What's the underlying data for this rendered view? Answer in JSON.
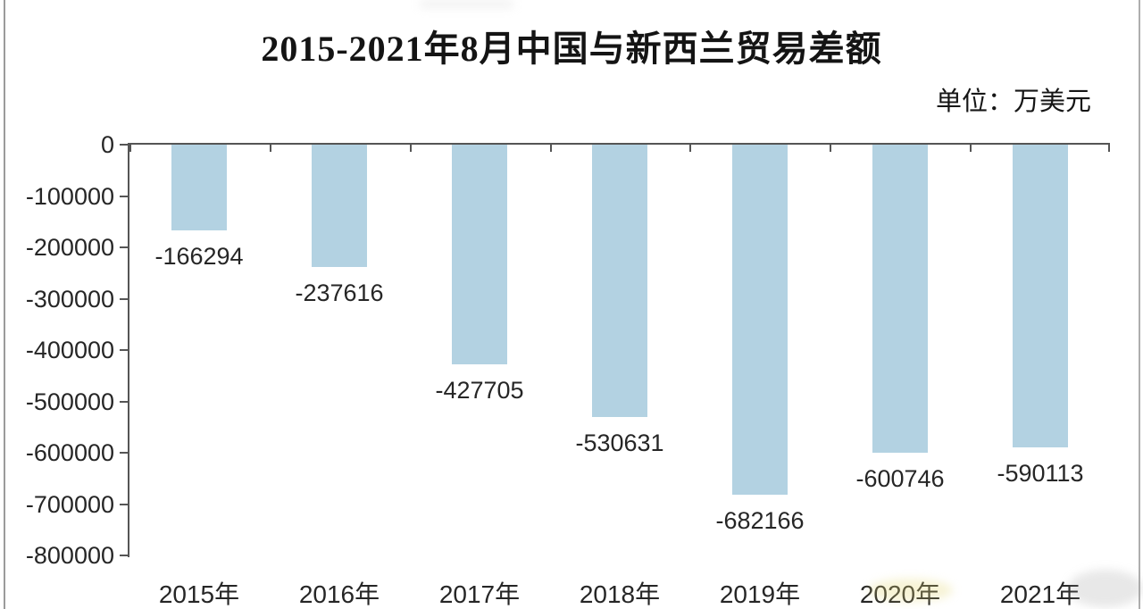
{
  "frame": {
    "left_border_color": "#9b9b9b",
    "right_border_color": "#aeaeae"
  },
  "header": {
    "title": "2015-2021年8月中国与新西兰贸易差额",
    "unit_label": "单位：万美元"
  },
  "chart_data": {
    "type": "bar",
    "title": "2015-2021年8月中国与新西兰贸易差额",
    "unit_label": "单位：万美元",
    "categories": [
      "2015年",
      "2016年",
      "2017年",
      "2018年",
      "2019年",
      "2020年",
      "2021年"
    ],
    "values": [
      -166294,
      -237616,
      -427705,
      -530631,
      -682166,
      -600746,
      -590113
    ],
    "data_labels": [
      "-166294",
      "-237616",
      "-427705",
      "-530631",
      "-682166",
      "-600746",
      "-590113"
    ],
    "xlabel": "",
    "ylabel": "",
    "ylim": [
      -800000,
      0
    ],
    "y_tick_step": 100000,
    "y_tick_labels": [
      "0",
      "-100000",
      "-200000",
      "-300000",
      "-400000",
      "-500000",
      "-600000",
      "-700000",
      "-800000"
    ],
    "grid": false,
    "legend": "none",
    "bar_color": "#b3d2e2",
    "axis_color": "#555555",
    "text_color": "#262626"
  }
}
